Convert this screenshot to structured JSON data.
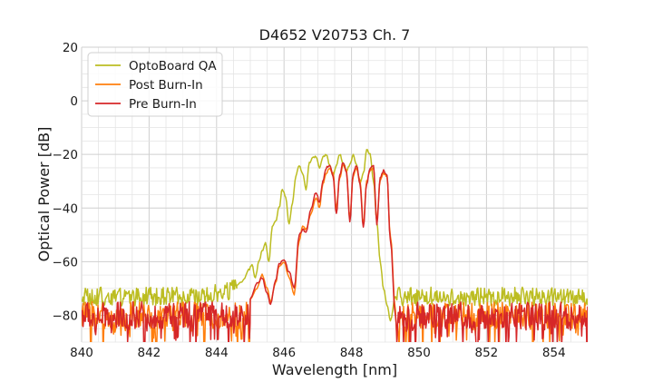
{
  "chart_data": {
    "type": "line",
    "title": "D4652 V20753 Ch. 7",
    "xlabel": "Wavelength [nm]",
    "ylabel": "Optical Power [dB]",
    "xlim": [
      840,
      855
    ],
    "ylim": [
      -90,
      20
    ],
    "xticks": [
      840,
      842,
      844,
      846,
      848,
      850,
      852,
      854
    ],
    "yticks": [
      -80,
      -60,
      -40,
      -20,
      0,
      20
    ],
    "xtick_labels": [
      "840",
      "842",
      "844",
      "846",
      "848",
      "850",
      "852",
      "854"
    ],
    "ytick_labels": [
      "−80",
      "−60",
      "−40",
      "−20",
      "0",
      "20"
    ],
    "grid": true,
    "minor_grid": true,
    "legend_position": "top-left",
    "series": [
      {
        "name": "OptoBoard QA",
        "color": "#bcbd22",
        "noise_floor": -73,
        "noise_spread": 7,
        "x": [
          844.6,
          844.8,
          844.95,
          845.05,
          845.15,
          845.25,
          845.35,
          845.45,
          845.55,
          845.65,
          845.75,
          845.85,
          845.95,
          846.05,
          846.15,
          846.25,
          846.35,
          846.45,
          846.55,
          846.65,
          846.75,
          846.85,
          846.95,
          847.05,
          847.15,
          847.25,
          847.35,
          847.45,
          847.55,
          847.65,
          847.75,
          847.85,
          847.95,
          848.05,
          848.15,
          848.25,
          848.35,
          848.45,
          848.55,
          848.65,
          848.75,
          848.85,
          848.95,
          849.05,
          849.15,
          849.3
        ],
        "y": [
          -69,
          -67,
          -63,
          -61,
          -66,
          -60,
          -56,
          -53,
          -60,
          -47,
          -45,
          -40,
          -33,
          -36,
          -46,
          -38,
          -28,
          -24,
          -27,
          -33,
          -23,
          -21,
          -21,
          -25,
          -21,
          -20,
          -24,
          -28,
          -24,
          -20,
          -23,
          -26,
          -24,
          -20,
          -24,
          -31,
          -27,
          -18,
          -20,
          -30,
          -45,
          -60,
          -70,
          -76,
          -82,
          -73
        ]
      },
      {
        "name": "Post Burn-In",
        "color": "#ff7f0e",
        "noise_floor": -80,
        "noise_spread": 10,
        "x": [
          845.0,
          845.2,
          845.35,
          845.5,
          845.6,
          845.75,
          845.85,
          846.0,
          846.15,
          846.3,
          846.45,
          846.55,
          846.65,
          846.8,
          846.95,
          847.05,
          847.15,
          847.25,
          847.35,
          847.45,
          847.55,
          847.65,
          847.75,
          847.85,
          847.95,
          848.05,
          848.15,
          848.25,
          848.35,
          848.45,
          848.55,
          848.65,
          848.75,
          848.85,
          848.95,
          849.05,
          849.15,
          849.3
        ],
        "y": [
          -74,
          -70,
          -65,
          -70,
          -75,
          -68,
          -62,
          -60,
          -66,
          -72,
          -52,
          -47,
          -48,
          -42,
          -36,
          -40,
          -31,
          -27,
          -25,
          -27,
          -40,
          -29,
          -24,
          -26,
          -44,
          -28,
          -25,
          -30,
          -46,
          -30,
          -26,
          -25,
          -45,
          -30,
          -27,
          -28,
          -50,
          -78
        ]
      },
      {
        "name": "Pre Burn-In",
        "color": "#d62728",
        "noise_floor": -80,
        "noise_spread": 10,
        "x": [
          845.0,
          845.2,
          845.35,
          845.5,
          845.6,
          845.75,
          845.85,
          846.0,
          846.15,
          846.3,
          846.45,
          846.55,
          846.65,
          846.8,
          846.95,
          847.05,
          847.15,
          847.25,
          847.35,
          847.45,
          847.55,
          847.65,
          847.75,
          847.85,
          847.95,
          848.05,
          848.15,
          848.25,
          848.35,
          848.45,
          848.55,
          848.65,
          848.75,
          848.85,
          848.95,
          849.05,
          849.15,
          849.3
        ],
        "y": [
          -74,
          -68,
          -66,
          -72,
          -76,
          -67,
          -61,
          -59,
          -64,
          -70,
          -50,
          -48,
          -49,
          -40,
          -34,
          -38,
          -30,
          -25,
          -24,
          -28,
          -42,
          -28,
          -23,
          -27,
          -45,
          -27,
          -24,
          -31,
          -47,
          -31,
          -25,
          -24,
          -46,
          -29,
          -26,
          -28,
          -52,
          -80
        ]
      }
    ]
  }
}
